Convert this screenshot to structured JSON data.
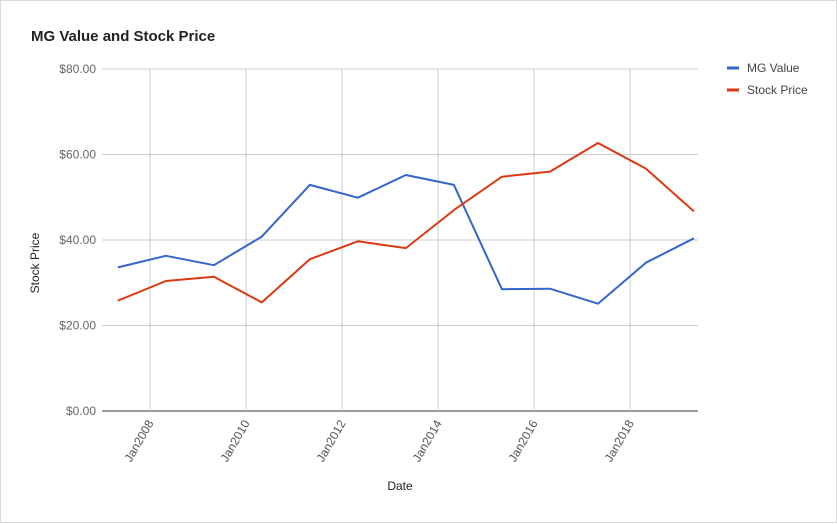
{
  "chart_data": {
    "type": "line",
    "title": "MG Value and Stock Price",
    "xlabel": "Date",
    "ylabel": "Stock Price",
    "ylim": [
      0,
      80
    ],
    "xlim": [
      "2007-01-01",
      "2019-06-01"
    ],
    "y_ticks": [
      "$0.00",
      "$20.00",
      "$40.00",
      "$60.00",
      "$80.00"
    ],
    "x_ticks": [
      {
        "label": "Jan2008",
        "date": "2008-01-01"
      },
      {
        "label": "Jan2010",
        "date": "2010-01-01"
      },
      {
        "label": "Jan2012",
        "date": "2012-01-01"
      },
      {
        "label": "Jan2014",
        "date": "2014-01-01"
      },
      {
        "label": "Jan2016",
        "date": "2016-01-01"
      },
      {
        "label": "Jan2018",
        "date": "2018-01-01"
      }
    ],
    "grid": true,
    "legend_position": "right",
    "x": [
      "2007-05-01",
      "2008-05-01",
      "2009-05-01",
      "2010-05-01",
      "2011-05-01",
      "2012-05-01",
      "2013-05-01",
      "2014-05-01",
      "2015-05-01",
      "2016-05-01",
      "2017-05-01",
      "2018-05-01",
      "2019-05-01"
    ],
    "series": [
      {
        "name": "MG Value",
        "color": "#3366cc",
        "values": [
          33.6,
          36.3,
          34.1,
          40.8,
          52.9,
          49.9,
          55.2,
          52.9,
          28.5,
          28.6,
          25.1,
          34.7,
          40.4
        ]
      },
      {
        "name": "Stock Price",
        "color": "#dc3912",
        "values": [
          25.8,
          30.4,
          31.4,
          25.4,
          35.5,
          39.7,
          38.1,
          47.0,
          54.8,
          56.0,
          62.7,
          56.7,
          46.7
        ]
      }
    ]
  }
}
